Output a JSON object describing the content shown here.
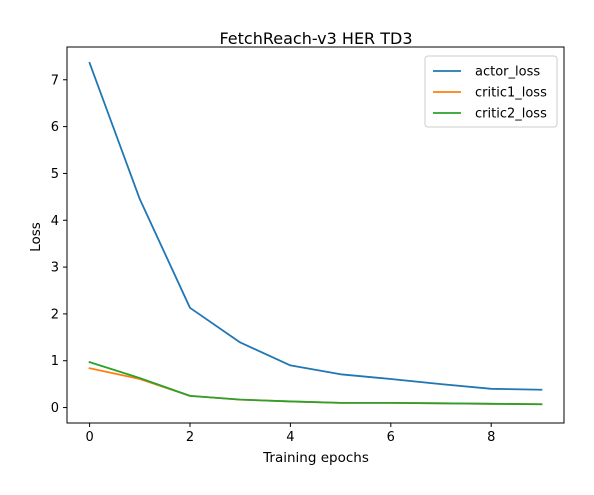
{
  "chart_data": {
    "type": "line",
    "title": "FetchReach-v3 HER TD3",
    "xlabel": "Training epochs",
    "ylabel": "Loss",
    "xlim": [
      -0.45,
      9.45
    ],
    "ylim": [
      -0.33,
      7.7
    ],
    "xticks": [
      0,
      2,
      4,
      6,
      8
    ],
    "yticks": [
      0,
      1,
      2,
      3,
      4,
      5,
      6,
      7
    ],
    "grid": false,
    "legend": "top-right",
    "x": [
      0,
      1,
      2,
      3,
      4,
      5,
      6,
      7,
      8,
      9
    ],
    "series": [
      {
        "name": "actor_loss",
        "color": "#1f77b4",
        "values": [
          7.36,
          4.45,
          2.13,
          1.39,
          0.9,
          0.71,
          0.61,
          0.5,
          0.4,
          0.38
        ]
      },
      {
        "name": "critic1_loss",
        "color": "#ff7f0e",
        "values": [
          0.84,
          0.61,
          0.25,
          0.17,
          0.13,
          0.1,
          0.1,
          0.09,
          0.08,
          0.07
        ]
      },
      {
        "name": "critic2_loss",
        "color": "#2ca02c",
        "values": [
          0.97,
          0.63,
          0.25,
          0.17,
          0.13,
          0.1,
          0.1,
          0.09,
          0.08,
          0.07
        ]
      }
    ]
  }
}
